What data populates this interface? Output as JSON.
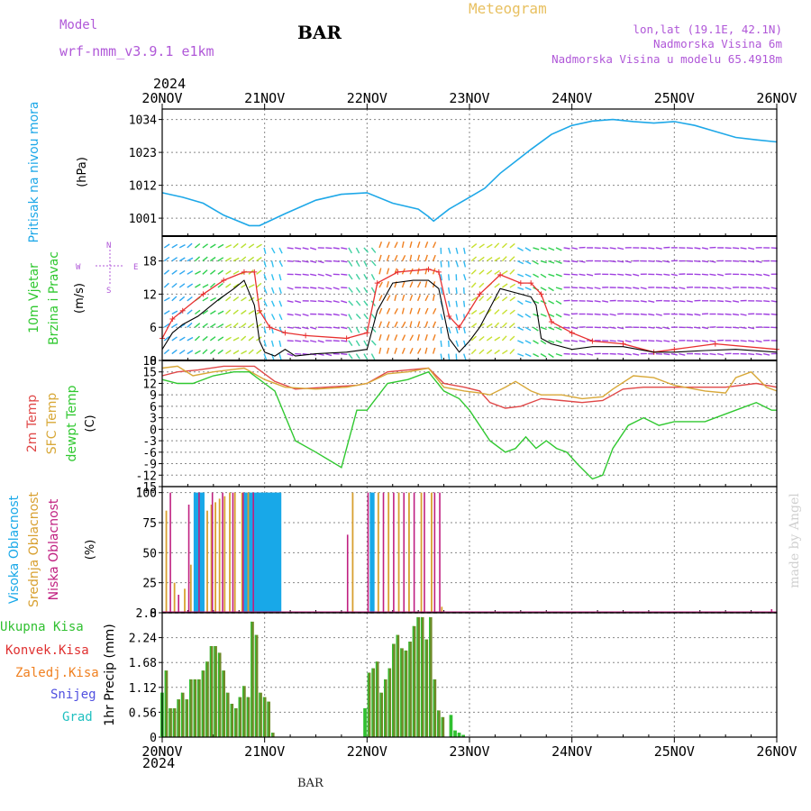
{
  "header": {
    "model_label": "Model",
    "model_name": "wrf-nmm_v3.9.1 e1km",
    "station": "BAR",
    "product": "Meteogram",
    "lonlat": "lon,lat (19.1E, 42.1N)",
    "elevation": "Nadmorska Visina 6m",
    "model_elevation": "Nadmorska Visina u modelu 65.4918m",
    "year_top": "2024",
    "year_bottom": "2024",
    "footer_station": "BAR",
    "credit": "made by Angel"
  },
  "axis_dates": [
    "20NOV",
    "21NOV",
    "22NOV",
    "23NOV",
    "24NOV",
    "25NOV",
    "26NOV"
  ],
  "panels": {
    "pressure": {
      "ylabel": "Pritisak na nivou mora",
      "unit": "(hPa)"
    },
    "wind": {
      "ylabel1": "10m Vjetar",
      "ylabel2": "Brzina i Pravac",
      "unit": "(m/s)",
      "compass_n": "N",
      "compass_w": "W",
      "compass_e": "E",
      "compass_s": "S"
    },
    "temp": {
      "ylabel1": "2m Temp",
      "ylabel2": "SFC Temp",
      "ylabel3": "dewpt Temp",
      "unit": "(C)"
    },
    "cloud": {
      "ylabel1": "Visoka Oblacnost",
      "ylabel2": "Srednja Oblacnost",
      "ylabel3": "Niska Oblacnost",
      "unit": "(%)"
    },
    "precip": {
      "ylabel": "1hr Precip (mm)",
      "legend": [
        "Ukupna Kisa",
        "Konvek.Kisa",
        "Zaledj.Kisa",
        "Snijeg",
        "Grad"
      ]
    }
  },
  "colors": {
    "pressure": "#1ea8e8",
    "wind_speed": "#000000",
    "gust": "#e83030",
    "temp2m": "#e04848",
    "sfc": "#d8a838",
    "dewpt": "#30c830",
    "cloud_high": "#18a8e8",
    "cloud_mid": "#d8a030",
    "cloud_low": "#c02080",
    "precip_total": "#30c030",
    "precip_conv": "#e03030",
    "precip_frz": "#f08020",
    "precip_snow": "#5050e0",
    "precip_hail": "#20c0c0",
    "model": "#b058d8",
    "meteogram": "#e8c060"
  },
  "chart_data": [
    {
      "type": "line",
      "name": "pressure",
      "x_range_days": [
        20,
        26
      ],
      "ylim": [
        995,
        1037.5
      ],
      "yticks": [
        1001,
        1012,
        1023,
        1034
      ],
      "x": [
        20.0,
        20.2,
        20.4,
        20.6,
        20.85,
        20.95,
        21.2,
        21.5,
        21.75,
        22.0,
        22.25,
        22.5,
        22.6,
        22.65,
        22.8,
        23.0,
        23.15,
        23.3,
        23.45,
        23.6,
        23.8,
        24.0,
        24.2,
        24.4,
        24.6,
        24.8,
        25.0,
        25.2,
        25.4,
        25.6,
        25.8,
        26.0
      ],
      "values": [
        1009.5,
        1008,
        1006,
        1002,
        998.5,
        998.5,
        1002.5,
        1007,
        1009,
        1009.5,
        1006,
        1004,
        1001.5,
        1000,
        1004,
        1008,
        1011,
        1016,
        1020,
        1024,
        1029,
        1032,
        1033.5,
        1034,
        1033.3,
        1032.8,
        1033.3,
        1032,
        1030,
        1028,
        1027.2,
        1026.5
      ]
    },
    {
      "type": "line",
      "name": "wind",
      "ylim": [
        0,
        22.5
      ],
      "yticks": [
        0,
        6,
        12,
        18
      ],
      "series": [
        {
          "x": [
            20.0,
            20.1,
            20.2,
            20.35,
            20.55,
            20.7,
            20.8,
            20.9,
            20.95,
            21.0,
            21.1,
            21.2,
            21.3,
            21.5,
            21.8,
            22.0,
            22.1,
            22.25,
            22.45,
            22.6,
            22.7,
            22.8,
            22.9,
            23.0,
            23.1,
            23.3,
            23.5,
            23.6,
            23.65,
            23.7,
            23.8,
            24.0,
            24.2,
            24.5,
            24.8,
            25.0,
            25.3,
            25.6,
            26.0
          ],
          "values": [
            2,
            5,
            6.5,
            8,
            11,
            13,
            14.5,
            10,
            3.5,
            1.5,
            0.8,
            2,
            0.8,
            1.2,
            1.5,
            2,
            9,
            14,
            14.5,
            14.5,
            13,
            4,
            1.5,
            3.5,
            6,
            13,
            12,
            11.5,
            10,
            4,
            3,
            2,
            2.5,
            2.5,
            1.5,
            1.5,
            1.8,
            2,
            1.5
          ]
        },
        {
          "x": [
            20.0,
            20.1,
            20.2,
            20.4,
            20.6,
            20.8,
            20.9,
            20.95,
            21.05,
            21.2,
            21.4,
            21.8,
            22.0,
            22.1,
            22.3,
            22.6,
            22.7,
            22.8,
            22.9,
            23.1,
            23.3,
            23.5,
            23.6,
            23.7,
            23.8,
            24.0,
            24.2,
            24.5,
            24.8,
            25.0,
            25.4,
            26.0
          ],
          "values": [
            4,
            7.5,
            9,
            12,
            14.5,
            16,
            16,
            9,
            6,
            5,
            4.5,
            4,
            5,
            14,
            16,
            16.5,
            16,
            8,
            6,
            12,
            15.5,
            14,
            14,
            12,
            7,
            5,
            3.5,
            3,
            1.5,
            2,
            3,
            2
          ]
        }
      ]
    },
    {
      "type": "line",
      "name": "temperature",
      "ylim": [
        -15,
        18
      ],
      "yticks": [
        -15,
        -12,
        -9,
        -6,
        -3,
        0,
        3,
        6,
        9,
        12,
        15,
        18
      ],
      "series": [
        {
          "x": [
            20.0,
            20.15,
            20.35,
            20.6,
            20.9,
            21.1,
            21.3,
            21.6,
            21.9,
            22.0,
            22.2,
            22.4,
            22.6,
            22.75,
            22.95,
            23.1,
            23.2,
            23.35,
            23.5,
            23.7,
            23.9,
            24.1,
            24.3,
            24.5,
            24.7,
            25.0,
            25.5,
            25.8,
            26.0
          ],
          "values": [
            14,
            15,
            15.5,
            16.5,
            16.5,
            12.5,
            10.5,
            11,
            11.5,
            12,
            15,
            15.5,
            16,
            12,
            11,
            10,
            7,
            5.5,
            6,
            8,
            7.5,
            7,
            7.5,
            10.5,
            11,
            11,
            11,
            12,
            11
          ]
        },
        {
          "x": [
            20.0,
            20.15,
            20.3,
            20.5,
            20.8,
            21.0,
            21.2,
            21.5,
            21.8,
            22.0,
            22.2,
            22.4,
            22.6,
            22.75,
            22.95,
            23.1,
            23.2,
            23.35,
            23.45,
            23.6,
            23.7,
            23.9,
            24.1,
            24.3,
            24.4,
            24.6,
            24.8,
            25.0,
            25.3,
            25.5,
            25.6,
            25.75,
            25.9,
            26.0
          ],
          "values": [
            16,
            16.5,
            14,
            15,
            16,
            13,
            11,
            10.5,
            11,
            12,
            14.5,
            15,
            16,
            11,
            10,
            9.5,
            9,
            11,
            12.5,
            10,
            9,
            9,
            8,
            8.5,
            10.5,
            14,
            13.5,
            11.5,
            10,
            9.5,
            13.5,
            15,
            11,
            10
          ]
        },
        {
          "x": [
            20.0,
            20.15,
            20.3,
            20.5,
            20.7,
            20.85,
            21.0,
            21.1,
            21.3,
            21.5,
            21.75,
            21.9,
            22.0,
            22.2,
            22.4,
            22.6,
            22.75,
            22.9,
            23.0,
            23.2,
            23.35,
            23.45,
            23.55,
            23.65,
            23.75,
            23.85,
            23.95,
            24.05,
            24.2,
            24.3,
            24.4,
            24.55,
            24.7,
            24.85,
            25.0,
            25.3,
            25.6,
            25.8,
            25.95,
            26.0
          ],
          "values": [
            13,
            12,
            12,
            14,
            15,
            15,
            12,
            10,
            -3,
            -6,
            -10,
            5,
            5,
            12,
            13,
            15,
            10,
            8,
            5,
            -3,
            -6,
            -5,
            -2,
            -5,
            -3,
            -5,
            -6,
            -9,
            -13,
            -12,
            -5,
            1,
            3,
            1,
            2,
            2,
            5,
            7,
            5,
            5
          ]
        }
      ]
    },
    {
      "type": "bar",
      "name": "cloud",
      "ylim": [
        0,
        105
      ],
      "yticks": [
        0,
        25,
        50,
        75,
        100
      ],
      "series": [
        {
          "name_key": "high",
          "x": [
            20.32,
            20.34,
            20.36,
            20.38,
            20.4,
            20.81,
            20.83,
            20.85,
            20.87,
            20.89,
            20.91,
            20.93,
            20.95,
            20.97,
            20.99,
            21.01,
            21.03,
            21.05,
            21.07,
            21.09,
            21.11,
            21.13,
            21.15,
            22.04,
            22.06
          ],
          "values": [
            100,
            100,
            100,
            100,
            100,
            100,
            100,
            100,
            100,
            100,
            100,
            100,
            100,
            100,
            100,
            100,
            100,
            100,
            100,
            100,
            100,
            100,
            100,
            100,
            100
          ]
        },
        {
          "name_key": "mid",
          "x": [
            20.04,
            20.12,
            20.22,
            20.28,
            20.44,
            20.48,
            20.52,
            20.56,
            20.61,
            20.66,
            20.71,
            20.78,
            20.84,
            21.86,
            22.11,
            22.21,
            22.31,
            22.41,
            22.53,
            22.63,
            22.73
          ],
          "values": [
            85,
            25,
            20,
            40,
            85,
            90,
            92,
            95,
            97,
            100,
            100,
            100,
            100,
            100,
            100,
            100,
            100,
            100,
            100,
            100,
            5
          ]
        },
        {
          "name_key": "low",
          "x": [
            20.08,
            20.16,
            20.26,
            20.36,
            20.49,
            20.59,
            20.69,
            20.79,
            20.89,
            21.81,
            22.01,
            22.16,
            22.26,
            22.36,
            22.46,
            22.56,
            22.66,
            22.71,
            25.95
          ],
          "values": [
            100,
            15,
            90,
            100,
            100,
            100,
            100,
            100,
            100,
            65,
            100,
            100,
            100,
            100,
            100,
            100,
            100,
            100,
            3
          ]
        }
      ]
    },
    {
      "type": "bar",
      "name": "precipitation",
      "ylim": [
        0,
        2.8
      ],
      "yticks": [
        0,
        0.56,
        1.12,
        1.68,
        2.24,
        2.8
      ],
      "series": [
        {
          "name_key": "total",
          "x": [
            20.0,
            20.04,
            20.08,
            20.12,
            20.16,
            20.2,
            20.24,
            20.28,
            20.32,
            20.36,
            20.4,
            20.44,
            20.48,
            20.52,
            20.56,
            20.6,
            20.64,
            20.68,
            20.72,
            20.76,
            20.8,
            20.84,
            20.88,
            20.92,
            20.96,
            21.0,
            21.04,
            21.08,
            21.98,
            22.02,
            22.06,
            22.1,
            22.14,
            22.18,
            22.22,
            22.26,
            22.3,
            22.34,
            22.38,
            22.42,
            22.46,
            22.5,
            22.54,
            22.58,
            22.62,
            22.66,
            22.7,
            22.74,
            22.82,
            22.86,
            22.9,
            22.94
          ],
          "values": [
            1.0,
            1.5,
            0.65,
            0.65,
            0.85,
            1.0,
            0.85,
            1.3,
            1.3,
            1.3,
            1.5,
            1.7,
            2.05,
            2.05,
            1.9,
            1.5,
            1.0,
            0.75,
            0.65,
            0.9,
            1.15,
            0.9,
            2.6,
            2.3,
            1.0,
            0.9,
            0.8,
            0.1,
            0.65,
            1.45,
            1.55,
            1.7,
            1.0,
            1.3,
            1.55,
            2.1,
            2.3,
            2.0,
            1.95,
            2.15,
            2.5,
            2.7,
            2.7,
            2.2,
            2.7,
            1.3,
            0.6,
            0.45,
            0.5,
            0.15,
            0.1,
            0.05
          ]
        }
      ]
    }
  ]
}
